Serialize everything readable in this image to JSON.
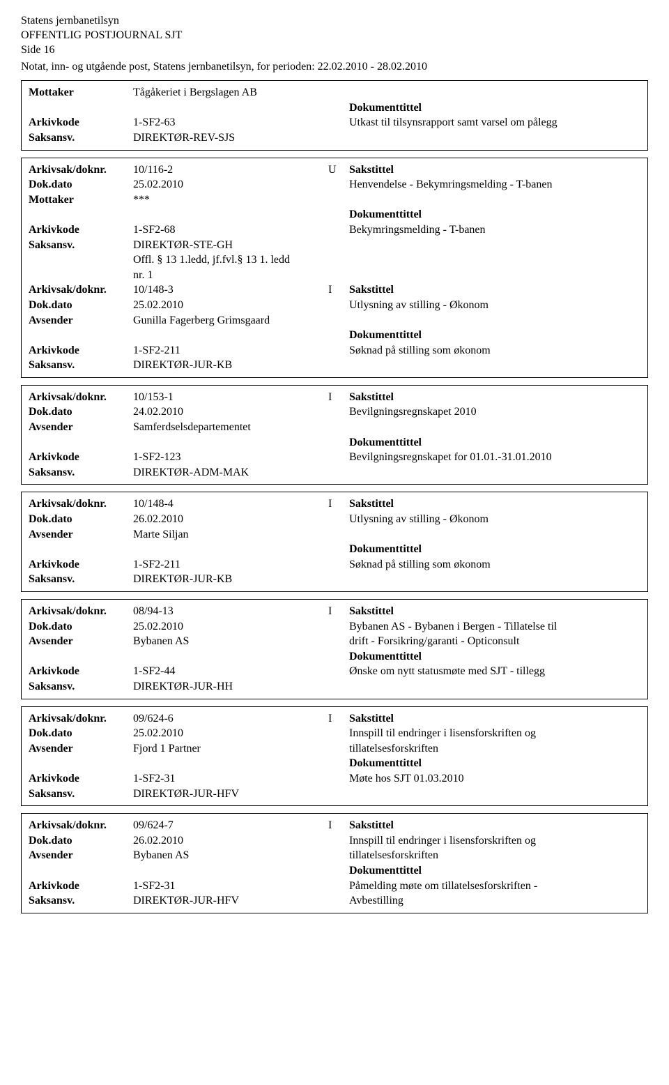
{
  "header": {
    "org": "Statens jernbanetilsyn",
    "title": "OFFENTLIG POSTJOURNAL SJT",
    "page": "Side 16",
    "subhead": "Notat, inn- og utgående post, Statens jernbanetilsyn, for perioden: 22.02.2010 - 28.02.2010"
  },
  "labels": {
    "mottaker": "Mottaker",
    "avsender": "Avsender",
    "arkivkode": "Arkivkode",
    "saksansv": "Saksansv.",
    "arkivsak": "Arkivsak/doknr.",
    "dokdato": "Dok.dato",
    "sakstittel": "Sakstittel",
    "dokumenttittel": "Dokumenttittel"
  },
  "records": [
    {
      "top": [
        {
          "label": "Mottaker",
          "val": "Tågåkeriet i Bergslagen AB"
        }
      ],
      "right": [
        {
          "label": "Dokumenttittel",
          "val": ""
        },
        {
          "label": "",
          "val": "Utkast til tilsynsrapport samt varsel om pålegg"
        }
      ],
      "mid": [
        {
          "label": "Arkivkode",
          "val": "1-SF2-63"
        },
        {
          "label": "Saksansv.",
          "val": "DIREKTØR-REV-SJS"
        }
      ]
    },
    {
      "sak": {
        "nr": "10/116-2",
        "dir": "U",
        "title": "Sakstittel"
      },
      "dok": {
        "dato": "25.02.2010",
        "title": "Henvendelse - Bekymringsmelding - T-banen"
      },
      "party": {
        "label": "Mottaker",
        "val": "***"
      },
      "right": [
        {
          "label": "Dokumenttittel",
          "val": ""
        },
        {
          "label": "",
          "val": "Bekymringsmelding - T-banen"
        }
      ],
      "mid": [
        {
          "label": "Arkivkode",
          "val": "1-SF2-68"
        },
        {
          "label": "Saksansv.",
          "val": "DIREKTØR-STE-GH"
        }
      ],
      "extra": [
        "Offl. § 13 1.ledd, jf.fvl.§ 13 1. ledd",
        "nr. 1"
      ],
      "sub": {
        "sak": {
          "nr": "10/148-3",
          "dir": "I",
          "title": "Sakstittel"
        },
        "dok": {
          "dato": "25.02.2010",
          "title": "Utlysning av stilling - Økonom"
        },
        "party": {
          "label": "Avsender",
          "val": "Gunilla Fagerberg Grimsgaard"
        },
        "right": [
          {
            "label": "Dokumenttittel",
            "val": ""
          },
          {
            "label": "",
            "val": "Søknad på stilling som økonom"
          }
        ],
        "mid": [
          {
            "label": "Arkivkode",
            "val": "1-SF2-211"
          },
          {
            "label": "Saksansv.",
            "val": "DIREKTØR-JUR-KB"
          }
        ]
      }
    },
    {
      "sak": {
        "nr": "10/153-1",
        "dir": "I",
        "title": "Sakstittel"
      },
      "dok": {
        "dato": "24.02.2010",
        "title": "Bevilgningsregnskapet 2010"
      },
      "party": {
        "label": "Avsender",
        "val": "Samferdselsdepartementet"
      },
      "right": [
        {
          "label": "Dokumenttittel",
          "val": ""
        },
        {
          "label": "",
          "val": "Bevilgningsregnskapet for 01.01.-31.01.2010"
        }
      ],
      "mid": [
        {
          "label": "Arkivkode",
          "val": "1-SF2-123"
        },
        {
          "label": "Saksansv.",
          "val": "DIREKTØR-ADM-MAK"
        }
      ]
    },
    {
      "sak": {
        "nr": "10/148-4",
        "dir": "I",
        "title": "Sakstittel"
      },
      "dok": {
        "dato": "26.02.2010",
        "title": "Utlysning av stilling - Økonom"
      },
      "party": {
        "label": "Avsender",
        "val": "Marte Siljan"
      },
      "right": [
        {
          "label": "Dokumenttittel",
          "val": ""
        },
        {
          "label": "",
          "val": "Søknad på stilling som økonom"
        }
      ],
      "mid": [
        {
          "label": "Arkivkode",
          "val": "1-SF2-211"
        },
        {
          "label": "Saksansv.",
          "val": "DIREKTØR-JUR-KB"
        }
      ]
    },
    {
      "sak": {
        "nr": "08/94-13",
        "dir": "I",
        "title": "Sakstittel"
      },
      "dok": {
        "dato": "25.02.2010",
        "title": "Bybanen AS - Bybanen i Bergen - Tillatelse til"
      },
      "party": {
        "label": "Avsender",
        "val": "Bybanen AS",
        "cont": "drift - Forsikring/garanti - Opticonsult"
      },
      "right": [
        {
          "label": "Dokumenttittel",
          "val": ""
        },
        {
          "label": "",
          "val": "Ønske om nytt statusmøte med SJT - tillegg"
        }
      ],
      "mid": [
        {
          "label": "Arkivkode",
          "val": "1-SF2-44"
        },
        {
          "label": "Saksansv.",
          "val": "DIREKTØR-JUR-HH"
        }
      ]
    },
    {
      "sak": {
        "nr": "09/624-6",
        "dir": "I",
        "title": "Sakstittel"
      },
      "dok": {
        "dato": "25.02.2010",
        "title": "Innspill til endringer i lisensforskriften og"
      },
      "party": {
        "label": "Avsender",
        "val": "Fjord 1 Partner",
        "cont": "tillatelsesforskriften"
      },
      "right": [
        {
          "label": "Dokumenttittel",
          "val": ""
        },
        {
          "label": "",
          "val": "Møte hos SJT 01.03.2010"
        }
      ],
      "mid": [
        {
          "label": "Arkivkode",
          "val": "1-SF2-31"
        },
        {
          "label": "Saksansv.",
          "val": "DIREKTØR-JUR-HFV"
        }
      ]
    },
    {
      "sak": {
        "nr": "09/624-7",
        "dir": "I",
        "title": "Sakstittel"
      },
      "dok": {
        "dato": "26.02.2010",
        "title": "Innspill til endringer i lisensforskriften og"
      },
      "party": {
        "label": "Avsender",
        "val": "Bybanen AS",
        "cont": "tillatelsesforskriften"
      },
      "right": [
        {
          "label": "Dokumenttittel",
          "val": ""
        },
        {
          "label": "",
          "val": "Påmelding møte om tillatelsesforskriften -"
        }
      ],
      "mid": [
        {
          "label": "Arkivkode",
          "val": "1-SF2-31"
        },
        {
          "label": "Saksansv.",
          "val": "DIREKTØR-JUR-HFV",
          "cont": "Avbestilling"
        }
      ]
    }
  ]
}
